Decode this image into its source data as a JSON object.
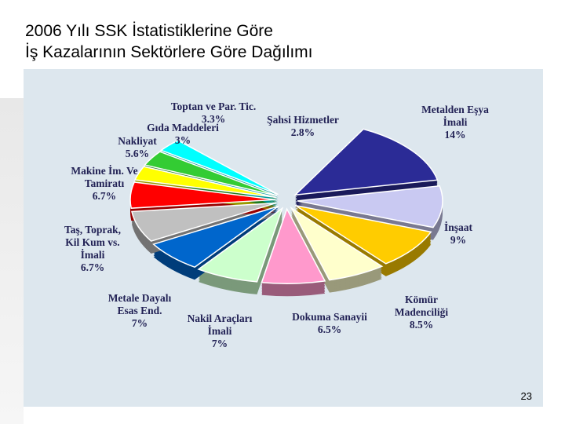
{
  "chart_data": {
    "type": "pie",
    "title": "2006 Yılı SSK İstatistiklerine Göre\nİş Kazalarının Sektörlere Göre Dağılımı",
    "page_number": "23",
    "categories": [
      "Metalden Eşya\nİmali",
      "İnşaat",
      "Kömür\nMadenciliği",
      "Dokuma Sanayii",
      "Nakil Araçları\nİmali",
      "Metale Dayalı\nEsas End.",
      "Taş, Toprak,\nKil Kum vs.\nİmali",
      "Makine İm. Ve\nTamiratı",
      "Nakliyat",
      "Gıda Maddeleri",
      "Toptan ve Par. Tic.",
      "Şahsi Hizmetler"
    ],
    "values": [
      14,
      9,
      8.5,
      6.5,
      7,
      7,
      6.7,
      6.7,
      5.6,
      3,
      3.3,
      2.8
    ],
    "value_labels": [
      "14%",
      "9%",
      "8.5%",
      "6.5%",
      "7%",
      "7%",
      "6.7%",
      "6.7%",
      "5.6%",
      "3%",
      "3.3%",
      "2.8%"
    ],
    "colors": [
      "#2b2b96",
      "#c9c9f2",
      "#ffcc00",
      "#ffffcc",
      "#ff99cc",
      "#ccffcc",
      "#0066cc",
      "#c0c0c0",
      "#ff0000",
      "#ffff00",
      "#33cc33",
      "#00ffff"
    ]
  }
}
